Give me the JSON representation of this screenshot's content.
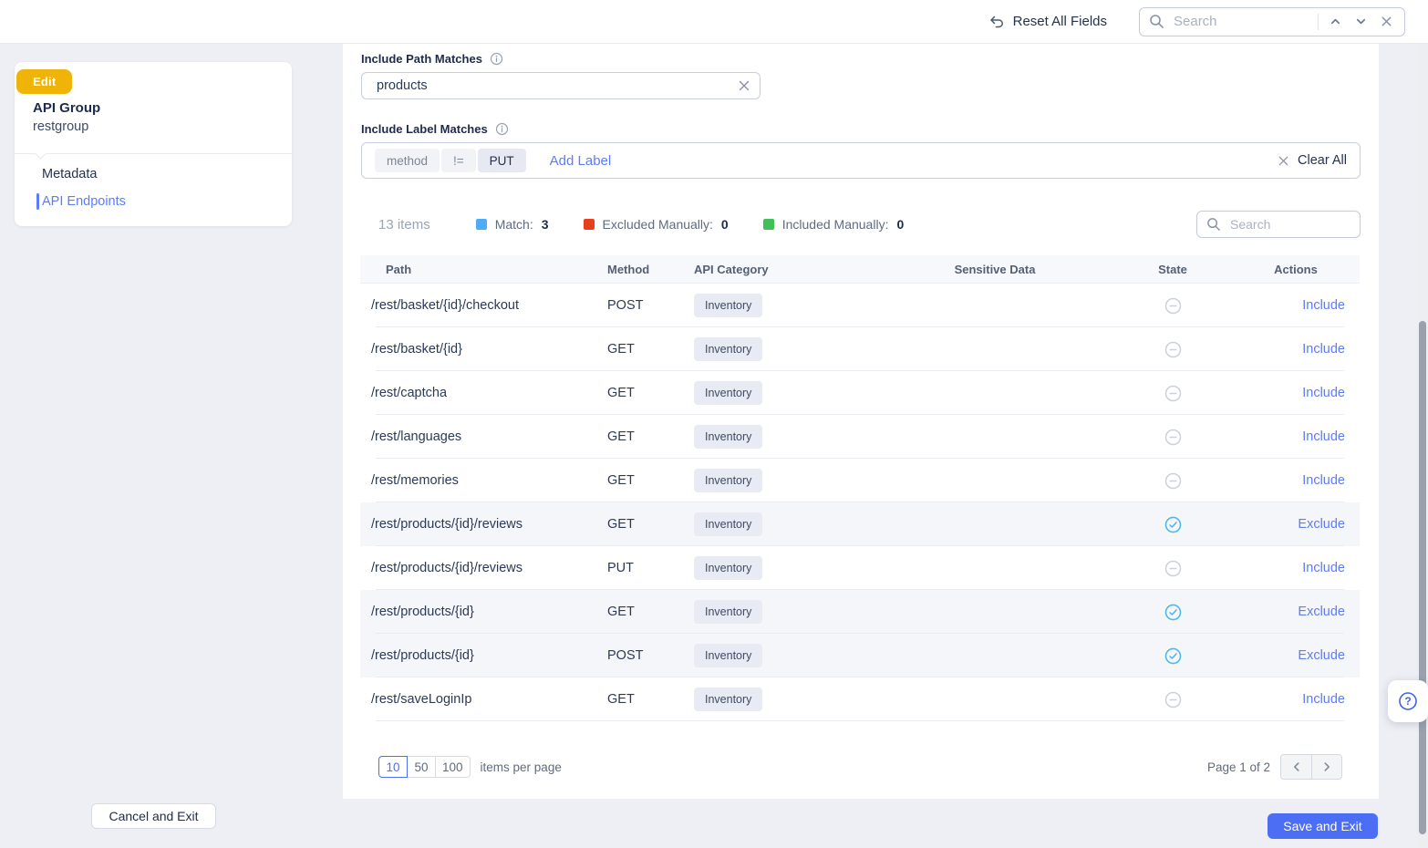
{
  "topbar": {
    "reset_label": "Reset All Fields",
    "search_placeholder": "Search"
  },
  "sidebar": {
    "badge": "Edit",
    "title": "API Group",
    "subtitle": "restgroup",
    "items": {
      "metadata": "Metadata",
      "endpoints": "API Endpoints"
    }
  },
  "filters": {
    "path_label": "Include Path Matches",
    "path_value": "products",
    "label_label": "Include Label Matches",
    "chips": [
      {
        "text": "method",
        "variant": "key"
      },
      {
        "text": "!=",
        "variant": "op"
      },
      {
        "text": "PUT",
        "variant": "value"
      }
    ],
    "add_label": "Add Label",
    "clear_all": "Clear All"
  },
  "summary": {
    "items_count": "13 items",
    "legend": [
      {
        "label": "Match:",
        "value": "3",
        "color": "#4dabf7"
      },
      {
        "label": "Excluded Manually:",
        "value": "0",
        "color": "#e8401c"
      },
      {
        "label": "Included Manually:",
        "value": "0",
        "color": "#40c057"
      }
    ],
    "search_placeholder": "Search"
  },
  "table": {
    "columns": [
      "Path",
      "Method",
      "API Category",
      "Sensitive Data",
      "State",
      "Actions"
    ],
    "rows": [
      {
        "path": "/rest/basket/{id}/checkout",
        "method": "POST",
        "category": "Inventory",
        "sensitive": "",
        "state": "none",
        "action": "Include",
        "highlighted": false
      },
      {
        "path": "/rest/basket/{id}",
        "method": "GET",
        "category": "Inventory",
        "sensitive": "",
        "state": "none",
        "action": "Include",
        "highlighted": false
      },
      {
        "path": "/rest/captcha",
        "method": "GET",
        "category": "Inventory",
        "sensitive": "",
        "state": "none",
        "action": "Include",
        "highlighted": false
      },
      {
        "path": "/rest/languages",
        "method": "GET",
        "category": "Inventory",
        "sensitive": "",
        "state": "none",
        "action": "Include",
        "highlighted": false
      },
      {
        "path": "/rest/memories",
        "method": "GET",
        "category": "Inventory",
        "sensitive": "",
        "state": "none",
        "action": "Include",
        "highlighted": false
      },
      {
        "path": "/rest/products/{id}/reviews",
        "method": "GET",
        "category": "Inventory",
        "sensitive": "",
        "state": "included",
        "action": "Exclude",
        "highlighted": true
      },
      {
        "path": "/rest/products/{id}/reviews",
        "method": "PUT",
        "category": "Inventory",
        "sensitive": "",
        "state": "none",
        "action": "Include",
        "highlighted": false
      },
      {
        "path": "/rest/products/{id}",
        "method": "GET",
        "category": "Inventory",
        "sensitive": "",
        "state": "included",
        "action": "Exclude",
        "highlighted": true
      },
      {
        "path": "/rest/products/{id}",
        "method": "POST",
        "category": "Inventory",
        "sensitive": "",
        "state": "included",
        "action": "Exclude",
        "highlighted": true
      },
      {
        "path": "/rest/saveLoginIp",
        "method": "GET",
        "category": "Inventory",
        "sensitive": "",
        "state": "none",
        "action": "Include",
        "highlighted": false
      }
    ]
  },
  "pagination": {
    "page_sizes": [
      "10",
      "50",
      "100"
    ],
    "selected_size": "10",
    "suffix": "items per page",
    "page_label": "Page 1 of 2"
  },
  "footer": {
    "cancel": "Cancel and Exit",
    "save": "Save and Exit"
  }
}
